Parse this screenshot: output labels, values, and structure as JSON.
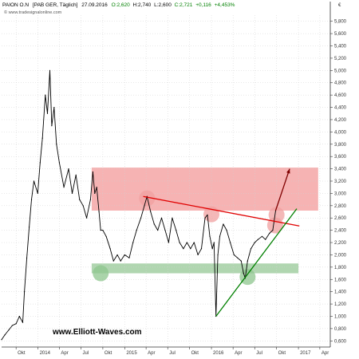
{
  "chart_data": {
    "type": "line",
    "instrument": "PAION O.N",
    "exchange_info": "[PAB GER, Täglich]",
    "date": "27.09.2016",
    "ohlc": {
      "open_label": "O:2,620",
      "high_label": "H:2,740",
      "low_label": "L:2,600",
      "close_label": "C:2,721",
      "change_label": "+0,116",
      "change_pct_label": "+4,453%"
    },
    "watermark": "© www.tradesignalonline.com",
    "footer_text": "www.Elliott-Waves.com",
    "currency_label": "€",
    "ylim": [
      0.5,
      5.9
    ],
    "y_ticks": [
      0.6,
      0.8,
      1.0,
      1.2,
      1.4,
      1.6,
      1.8,
      2.0,
      2.2,
      2.4,
      2.6,
      2.8,
      3.0,
      3.2,
      3.4,
      3.6,
      3.8,
      4.0,
      4.2,
      4.4,
      4.6,
      4.8,
      5.0,
      5.2,
      5.4,
      5.6,
      5.8
    ],
    "y_tick_labels": [
      "0,600",
      "0,800",
      "1,000",
      "1,200",
      "1,400",
      "1,600",
      "1,800",
      "2,000",
      "2,200",
      "2,400",
      "2,600",
      "2,800",
      "3,000",
      "3,200",
      "3,400",
      "3,600",
      "3,800",
      "4,000",
      "4,200",
      "4,400",
      "4,600",
      "4,800",
      "5,000",
      "5,200",
      "5,400",
      "5,600",
      "5,800"
    ],
    "xlim": [
      "2013-08-01",
      "2017-05-15"
    ],
    "x_ticks": [
      {
        "date": "2013-10-01",
        "label": "Okt"
      },
      {
        "date": "2014-01-01",
        "label": "2014"
      },
      {
        "date": "2014-04-01",
        "label": "Apr"
      },
      {
        "date": "2014-07-01",
        "label": "Jul"
      },
      {
        "date": "2014-10-01",
        "label": "Okt"
      },
      {
        "date": "2015-01-01",
        "label": "2015"
      },
      {
        "date": "2015-04-01",
        "label": "Apr"
      },
      {
        "date": "2015-07-01",
        "label": "Jul"
      },
      {
        "date": "2015-10-01",
        "label": "Okt"
      },
      {
        "date": "2016-01-01",
        "label": "2016"
      },
      {
        "date": "2016-04-01",
        "label": "Apr"
      },
      {
        "date": "2016-07-01",
        "label": "Jul"
      },
      {
        "date": "2016-10-01",
        "label": "Okt"
      },
      {
        "date": "2017-01-01",
        "label": "2017"
      },
      {
        "date": "2017-04-01",
        "label": "Apr"
      }
    ],
    "series": [
      {
        "color": "#000000",
        "points": [
          [
            "2013-08-01",
            0.62
          ],
          [
            "2013-08-15",
            0.7
          ],
          [
            "2013-09-01",
            0.78
          ],
          [
            "2013-09-15",
            0.85
          ],
          [
            "2013-10-01",
            0.88
          ],
          [
            "2013-10-15",
            1.0
          ],
          [
            "2013-10-29",
            0.9
          ],
          [
            "2013-11-05",
            1.4
          ],
          [
            "2013-11-15",
            1.95
          ],
          [
            "2013-11-25",
            2.45
          ],
          [
            "2013-12-05",
            2.9
          ],
          [
            "2013-12-15",
            3.2
          ],
          [
            "2013-12-31",
            3.0
          ],
          [
            "2014-01-10",
            3.5
          ],
          [
            "2014-01-20",
            3.9
          ],
          [
            "2014-02-01",
            4.6
          ],
          [
            "2014-02-10",
            4.3
          ],
          [
            "2014-02-20",
            5.0
          ],
          [
            "2014-02-28",
            4.1
          ],
          [
            "2014-03-10",
            4.4
          ],
          [
            "2014-03-20",
            3.8
          ],
          [
            "2014-04-01",
            3.5
          ],
          [
            "2014-04-20",
            3.1
          ],
          [
            "2014-05-10",
            3.4
          ],
          [
            "2014-05-25",
            3.0
          ],
          [
            "2014-06-10",
            3.3
          ],
          [
            "2014-06-25",
            2.9
          ],
          [
            "2014-07-10",
            2.8
          ],
          [
            "2014-07-25",
            2.6
          ],
          [
            "2014-08-10",
            2.9
          ],
          [
            "2014-08-20",
            3.35
          ],
          [
            "2014-08-28",
            3.0
          ],
          [
            "2014-09-05",
            3.1
          ],
          [
            "2014-09-15",
            2.7
          ],
          [
            "2014-09-22",
            2.4
          ],
          [
            "2014-10-01",
            2.4
          ],
          [
            "2014-10-15",
            2.3
          ],
          [
            "2014-11-01",
            2.1
          ],
          [
            "2014-11-15",
            1.9
          ],
          [
            "2014-12-01",
            2.0
          ],
          [
            "2014-12-15",
            1.9
          ],
          [
            "2015-01-01",
            2.0
          ],
          [
            "2015-01-20",
            1.95
          ],
          [
            "2015-02-05",
            2.2
          ],
          [
            "2015-02-20",
            2.4
          ],
          [
            "2015-03-10",
            2.6
          ],
          [
            "2015-03-25",
            2.8
          ],
          [
            "2015-04-05",
            2.95
          ],
          [
            "2015-04-20",
            2.7
          ],
          [
            "2015-05-05",
            2.5
          ],
          [
            "2015-05-20",
            2.4
          ],
          [
            "2015-06-05",
            2.6
          ],
          [
            "2015-06-20",
            2.4
          ],
          [
            "2015-07-05",
            2.2
          ],
          [
            "2015-07-20",
            2.6
          ],
          [
            "2015-08-05",
            2.4
          ],
          [
            "2015-08-20",
            2.2
          ],
          [
            "2015-09-05",
            2.1
          ],
          [
            "2015-09-20",
            2.2
          ],
          [
            "2015-10-05",
            2.1
          ],
          [
            "2015-10-20",
            2.2
          ],
          [
            "2015-11-05",
            2.0
          ],
          [
            "2015-11-20",
            2.1
          ],
          [
            "2015-12-05",
            2.6
          ],
          [
            "2015-12-15",
            2.65
          ],
          [
            "2015-12-25",
            2.3
          ],
          [
            "2016-01-05",
            2.1
          ],
          [
            "2016-01-12",
            2.2
          ],
          [
            "2016-01-20",
            1.0
          ],
          [
            "2016-01-28",
            2.0
          ],
          [
            "2016-02-05",
            2.3
          ],
          [
            "2016-02-20",
            2.5
          ],
          [
            "2016-03-05",
            2.4
          ],
          [
            "2016-03-20",
            2.2
          ],
          [
            "2016-04-05",
            2.0
          ],
          [
            "2016-04-20",
            1.95
          ],
          [
            "2016-05-05",
            1.9
          ],
          [
            "2016-05-15",
            1.7
          ],
          [
            "2016-05-22",
            1.62
          ],
          [
            "2016-06-01",
            1.9
          ],
          [
            "2016-06-15",
            2.1
          ],
          [
            "2016-07-01",
            2.2
          ],
          [
            "2016-07-15",
            2.25
          ],
          [
            "2016-08-01",
            2.3
          ],
          [
            "2016-08-15",
            2.25
          ],
          [
            "2016-09-01",
            2.35
          ],
          [
            "2016-09-15",
            2.4
          ],
          [
            "2016-09-27",
            2.72
          ]
        ]
      }
    ],
    "zones": [
      {
        "from": "2014-08-15",
        "to": "2017-03-25",
        "y_low": 2.72,
        "y_high": 3.42,
        "color": "#f08080",
        "opacity": 0.6
      },
      {
        "from": "2014-08-15",
        "to": "2017-01-01",
        "y_low": 1.7,
        "y_high": 1.86,
        "color": "#8ec58e",
        "opacity": 0.7
      }
    ],
    "circles": [
      {
        "date": "2014-09-22",
        "y": 1.7,
        "color": "#8ec58e"
      },
      {
        "date": "2016-06-01",
        "y": 1.64,
        "color": "#8ec58e"
      },
      {
        "date": "2015-04-05",
        "y": 2.92,
        "color": "#f0a0a0"
      },
      {
        "date": "2016-01-01",
        "y": 2.66,
        "color": "#f0a0a0"
      },
      {
        "date": "2016-10-01",
        "y": 2.65,
        "color": "#f0a0a0"
      },
      {
        "date": "2016-09-25",
        "y": 2.48,
        "color": "#f0a0a0"
      }
    ],
    "trendlines": [
      {
        "from_date": "2015-03-20",
        "from_y": 2.95,
        "to_date": "2017-01-05",
        "to_y": 2.47,
        "color": "#e00000"
      },
      {
        "from_date": "2016-01-20",
        "from_y": 1.0,
        "to_date": "2016-12-25",
        "to_y": 2.75,
        "color": "#008000"
      }
    ],
    "arrow": {
      "from_date": "2016-09-27",
      "from_y": 2.72,
      "to_date": "2016-11-25",
      "to_y": 3.4,
      "color": "#800000"
    }
  }
}
